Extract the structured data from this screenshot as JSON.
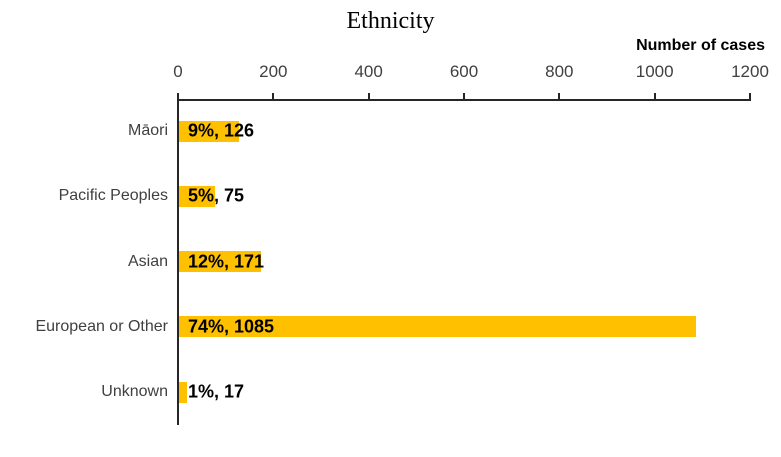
{
  "chart": {
    "title": "Ethnicity",
    "axis_title": "Number of cases"
  },
  "chart_data": {
    "type": "bar",
    "orientation": "horizontal",
    "title": "Ethnicity",
    "xlabel": "Number of cases",
    "x_axis_position": "top",
    "categories": [
      "Māori",
      "Pacific Peoples",
      "Asian",
      "European or Other",
      "Unknown"
    ],
    "values": [
      126,
      75,
      171,
      1085,
      17
    ],
    "percentages": [
      9,
      5,
      12,
      74,
      1
    ],
    "bar_labels": [
      "9%, 126",
      "5%, 75",
      "12%, 171",
      "74%, 1085",
      "1%, 17"
    ],
    "xlim": [
      0,
      1200
    ],
    "xticks": [
      0,
      200,
      400,
      600,
      800,
      1000,
      1200
    ],
    "grid": false,
    "legend": false,
    "colors": {
      "bar": "#FFC000",
      "axis": "#262626",
      "tick_label": "#404040",
      "category_label": "#404040",
      "value_label": "#000000"
    }
  }
}
